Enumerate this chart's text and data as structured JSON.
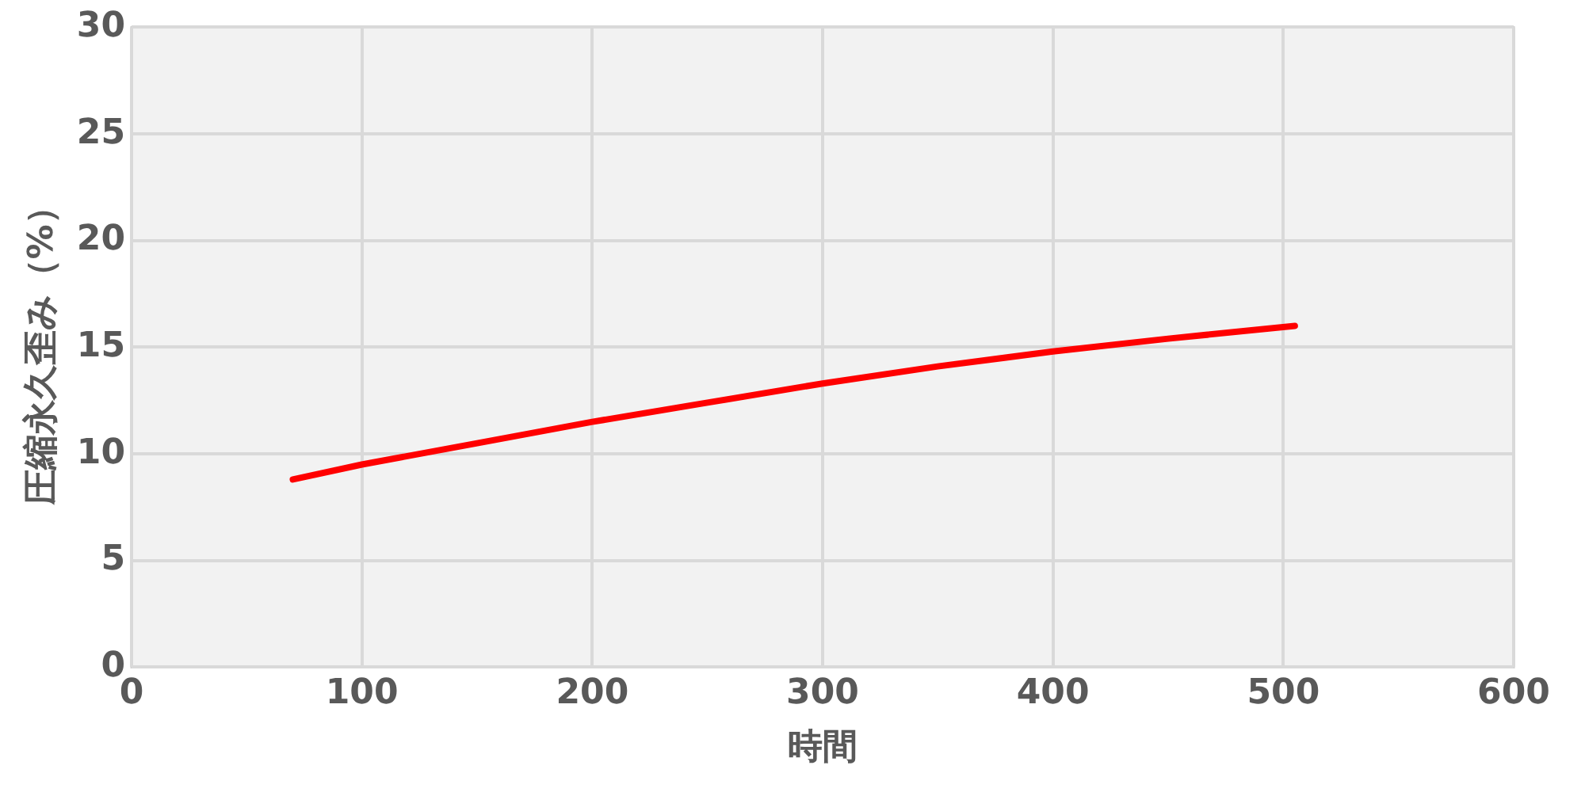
{
  "chart_data": {
    "type": "line",
    "xlabel": "時間",
    "ylabel": "圧縮永久歪み（%）",
    "x": [
      70,
      100,
      150,
      200,
      250,
      300,
      350,
      400,
      450,
      505
    ],
    "series": [
      {
        "color": "#ff0000",
        "values": [
          8.8,
          9.5,
          10.5,
          11.5,
          12.4,
          13.3,
          14.1,
          14.8,
          15.4,
          16.0
        ]
      }
    ],
    "xlim": [
      0,
      600
    ],
    "xticks": [
      0,
      100,
      200,
      300,
      400,
      500,
      600
    ],
    "ylim": [
      0,
      30
    ],
    "yticks": [
      0,
      5,
      10,
      15,
      20,
      25,
      30
    ],
    "grid": true,
    "legend": false,
    "marker": "none",
    "line_style": "solid"
  }
}
